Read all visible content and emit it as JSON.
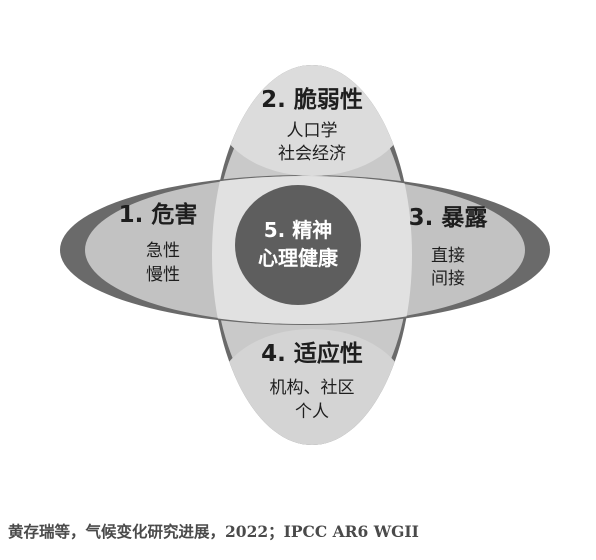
{
  "diagram": {
    "petals": {
      "top": {
        "title": "2. 脆弱性",
        "lines": [
          "人口学",
          "社会经济"
        ]
      },
      "left": {
        "title": "1. 危害",
        "lines": [
          "急性",
          "慢性"
        ]
      },
      "right": {
        "title": "3. 暴露",
        "lines": [
          "直接",
          "间接"
        ]
      },
      "bottom": {
        "title": "4. 适应性",
        "lines": [
          "机构、社区",
          "个人"
        ]
      }
    },
    "center": {
      "lines": [
        "5. 精神",
        "心理健康"
      ]
    }
  },
  "citation": "黄存瑞等，气候变化研究进展，2022；IPCC AR6 WGII"
}
